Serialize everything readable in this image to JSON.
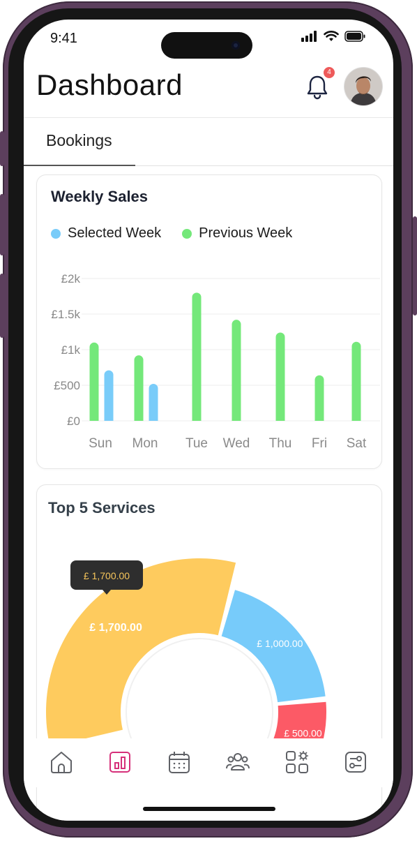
{
  "status_bar": {
    "time": "9:41"
  },
  "header": {
    "title": "Dashboard",
    "notification_count": "4"
  },
  "tabs": [
    {
      "label": "Bookings",
      "active": true
    }
  ],
  "weekly_sales": {
    "title": "Weekly Sales",
    "legend": [
      {
        "label": "Selected Week",
        "color": "#79ccf9"
      },
      {
        "label": "Previous Week",
        "color": "#74e87a"
      }
    ]
  },
  "top_services": {
    "title": "Top 5 Services",
    "tooltip": "£ 1,700.00",
    "slice_labels": [
      "£ 1,700.00",
      "£ 1,000.00",
      "£ 500.00"
    ]
  },
  "chart_data": [
    {
      "type": "bar",
      "title": "Weekly Sales",
      "categories": [
        "Sun",
        "Mon",
        "Tue",
        "Wed",
        "Thu",
        "Fri",
        "Sat"
      ],
      "yticks": [
        "£0",
        "£500",
        "£1k",
        "£1.5k",
        "£2k"
      ],
      "ylim": [
        0,
        2000
      ],
      "grid": true,
      "legend_position": "top-left",
      "series": [
        {
          "name": "Previous Week",
          "color": "#74e87a",
          "values": [
            1100,
            920,
            1800,
            1420,
            1240,
            640,
            1110
          ]
        },
        {
          "name": "Selected Week",
          "color": "#79ccf9",
          "values": [
            710,
            520,
            null,
            null,
            null,
            null,
            null
          ]
        }
      ]
    },
    {
      "type": "pie",
      "title": "Top 5 Services",
      "slices": [
        {
          "label": "£ 1,700.00",
          "value": 1700,
          "color": "#fecb5e"
        },
        {
          "label": "£ 1,000.00",
          "value": 1000,
          "color": "#77cbfa"
        },
        {
          "label": "£ 500.00",
          "value": 500,
          "color": "#fc5a66"
        }
      ]
    }
  ],
  "bottom_nav": [
    {
      "icon": "home-icon"
    },
    {
      "icon": "chart-icon",
      "active": true,
      "color": "#d6307a"
    },
    {
      "icon": "calendar-icon"
    },
    {
      "icon": "users-icon"
    },
    {
      "icon": "apps-icon"
    },
    {
      "icon": "settings-icon"
    }
  ]
}
